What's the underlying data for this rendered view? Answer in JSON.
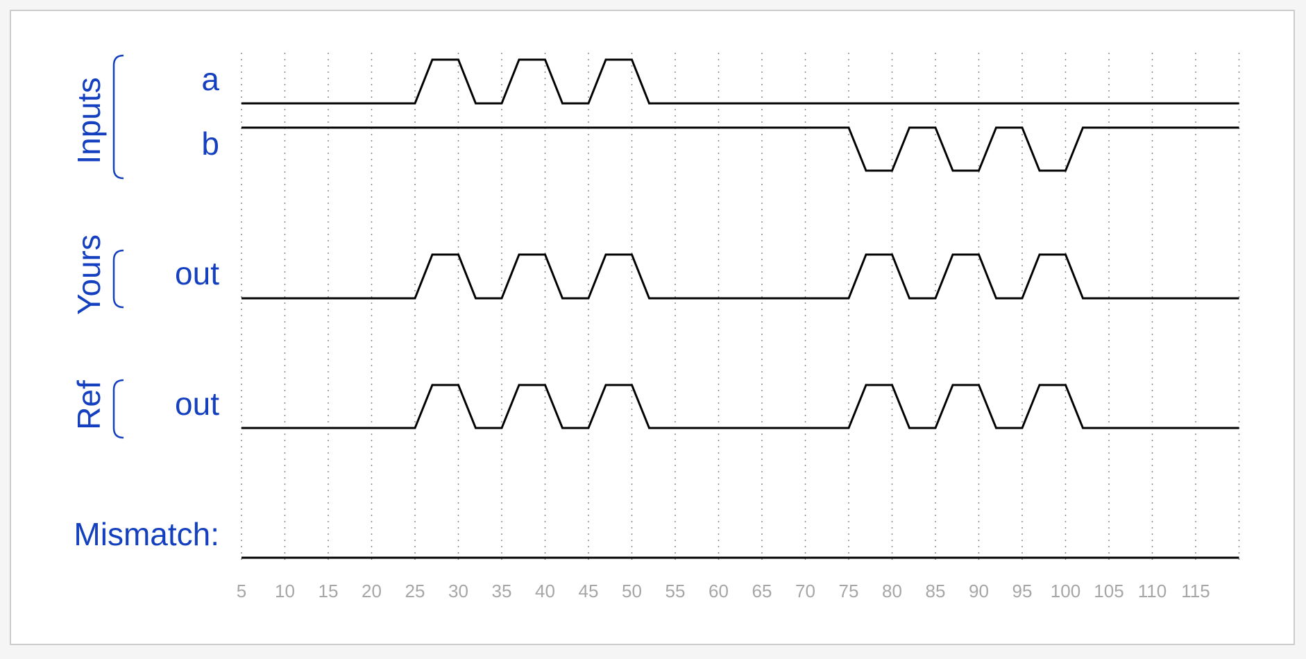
{
  "groups": [
    {
      "name": "Inputs",
      "signals": [
        "a",
        "b"
      ]
    },
    {
      "name": "Yours",
      "signals": [
        "out"
      ]
    },
    {
      "name": "Ref",
      "signals": [
        "out"
      ]
    }
  ],
  "mismatch_label": "Mismatch:",
  "colors": {
    "label": "#1440c0",
    "trace": "#000000",
    "tick": "#a6a6a6",
    "grid": "#888888"
  },
  "chart_data": {
    "type": "line",
    "title": "",
    "x_unit": "time",
    "xlim": [
      5,
      120
    ],
    "x_ticks": [
      5,
      10,
      15,
      20,
      25,
      30,
      35,
      40,
      45,
      50,
      55,
      60,
      65,
      70,
      75,
      80,
      85,
      90,
      95,
      100,
      105,
      110,
      115
    ],
    "series": [
      {
        "name": "a",
        "group": "Inputs",
        "transitions": [
          [
            5,
            0
          ],
          [
            25,
            1
          ],
          [
            30,
            0
          ],
          [
            35,
            1
          ],
          [
            40,
            0
          ],
          [
            45,
            1
          ],
          [
            50,
            0
          ]
        ]
      },
      {
        "name": "b",
        "group": "Inputs",
        "transitions": [
          [
            5,
            1
          ],
          [
            75,
            0
          ],
          [
            80,
            1
          ],
          [
            85,
            0
          ],
          [
            90,
            1
          ],
          [
            95,
            0
          ],
          [
            100,
            1
          ]
        ]
      },
      {
        "name": "out",
        "group": "Yours",
        "transitions": [
          [
            5,
            0
          ],
          [
            25,
            1
          ],
          [
            30,
            0
          ],
          [
            35,
            1
          ],
          [
            40,
            0
          ],
          [
            45,
            1
          ],
          [
            50,
            0
          ],
          [
            75,
            1
          ],
          [
            80,
            0
          ],
          [
            85,
            1
          ],
          [
            90,
            0
          ],
          [
            95,
            1
          ],
          [
            100,
            0
          ]
        ]
      },
      {
        "name": "out",
        "group": "Ref",
        "transitions": [
          [
            5,
            0
          ],
          [
            25,
            1
          ],
          [
            30,
            0
          ],
          [
            35,
            1
          ],
          [
            40,
            0
          ],
          [
            45,
            1
          ],
          [
            50,
            0
          ],
          [
            75,
            1
          ],
          [
            80,
            0
          ],
          [
            85,
            1
          ],
          [
            90,
            0
          ],
          [
            95,
            1
          ],
          [
            100,
            0
          ]
        ]
      },
      {
        "name": "Mismatch",
        "group": "",
        "transitions": [
          [
            5,
            0
          ]
        ]
      }
    ]
  }
}
